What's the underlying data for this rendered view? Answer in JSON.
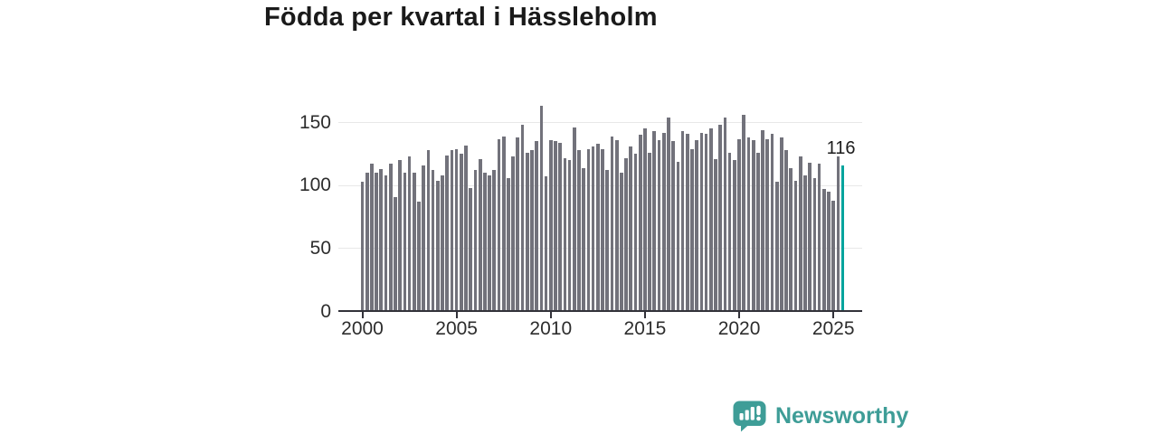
{
  "title": "Födda per kvartal i Hässleholm",
  "annotation": {
    "label": "116"
  },
  "branding": {
    "name": "Newsworthy"
  },
  "colors": {
    "bar": "#72727B",
    "highlight": "#00A49D",
    "gridline": "#E8E8E8",
    "axis": "#32323A",
    "brand": "#3E9D97"
  },
  "chart_data": {
    "type": "bar",
    "title": "Födda per kvartal i Hässleholm",
    "frequency": "quarterly",
    "x_start": "2000-Q1",
    "x_end": "2025-Q3",
    "categories": [
      "2000-Q1",
      "2000-Q2",
      "2000-Q3",
      "2000-Q4",
      "2001-Q1",
      "2001-Q2",
      "2001-Q3",
      "2001-Q4",
      "2002-Q1",
      "2002-Q2",
      "2002-Q3",
      "2002-Q4",
      "2003-Q1",
      "2003-Q2",
      "2003-Q3",
      "2003-Q4",
      "2004-Q1",
      "2004-Q2",
      "2004-Q3",
      "2004-Q4",
      "2005-Q1",
      "2005-Q2",
      "2005-Q3",
      "2005-Q4",
      "2006-Q1",
      "2006-Q2",
      "2006-Q3",
      "2006-Q4",
      "2007-Q1",
      "2007-Q2",
      "2007-Q3",
      "2007-Q4",
      "2008-Q1",
      "2008-Q2",
      "2008-Q3",
      "2008-Q4",
      "2009-Q1",
      "2009-Q2",
      "2009-Q3",
      "2009-Q4",
      "2010-Q1",
      "2010-Q2",
      "2010-Q3",
      "2010-Q4",
      "2011-Q1",
      "2011-Q2",
      "2011-Q3",
      "2011-Q4",
      "2012-Q1",
      "2012-Q2",
      "2012-Q3",
      "2012-Q4",
      "2013-Q1",
      "2013-Q2",
      "2013-Q3",
      "2013-Q4",
      "2014-Q1",
      "2014-Q2",
      "2014-Q3",
      "2014-Q4",
      "2015-Q1",
      "2015-Q2",
      "2015-Q3",
      "2015-Q4",
      "2016-Q1",
      "2016-Q2",
      "2016-Q3",
      "2016-Q4",
      "2017-Q1",
      "2017-Q2",
      "2017-Q3",
      "2017-Q4",
      "2018-Q1",
      "2018-Q2",
      "2018-Q3",
      "2018-Q4",
      "2019-Q1",
      "2019-Q2",
      "2019-Q3",
      "2019-Q4",
      "2020-Q1",
      "2020-Q2",
      "2020-Q3",
      "2020-Q4",
      "2021-Q1",
      "2021-Q2",
      "2021-Q3",
      "2021-Q4",
      "2022-Q1",
      "2022-Q2",
      "2022-Q3",
      "2022-Q4",
      "2023-Q1",
      "2023-Q2",
      "2023-Q3",
      "2023-Q4",
      "2024-Q1",
      "2024-Q2",
      "2024-Q3",
      "2024-Q4",
      "2025-Q1",
      "2025-Q2",
      "2025-Q3"
    ],
    "values": [
      103,
      110,
      117,
      110,
      113,
      108,
      117,
      91,
      120,
      110,
      123,
      110,
      87,
      116,
      128,
      112,
      104,
      108,
      124,
      128,
      129,
      125,
      132,
      98,
      112,
      121,
      110,
      108,
      112,
      137,
      139,
      106,
      123,
      138,
      148,
      126,
      128,
      135,
      163,
      107,
      136,
      135,
      134,
      122,
      120,
      146,
      128,
      114,
      129,
      131,
      133,
      129,
      112,
      139,
      136,
      110,
      122,
      131,
      125,
      140,
      145,
      126,
      143,
      136,
      142,
      154,
      135,
      119,
      143,
      141,
      129,
      136,
      142,
      141,
      145,
      121,
      148,
      154,
      126,
      120,
      137,
      156,
      138,
      136,
      126,
      144,
      137,
      141,
      103,
      138,
      128,
      114,
      104,
      123,
      108,
      118,
      106,
      117,
      97,
      95,
      88,
      123,
      116
    ],
    "highlight_index": 102,
    "highlight_value": 116,
    "y_ticks": [
      0,
      50,
      100,
      150
    ],
    "x_tick_labels": [
      "2000",
      "2005",
      "2010",
      "2015",
      "2020",
      "2025"
    ],
    "ylim": [
      0,
      168
    ],
    "grid": true,
    "legend": false
  }
}
